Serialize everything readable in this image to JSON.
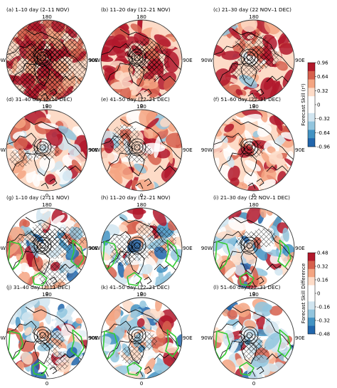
{
  "panels": [
    {
      "id": "a",
      "title": "(a) 1–10 day (2–11 NOV)",
      "kind": "skill",
      "level": 0.85,
      "hatch": 0.95
    },
    {
      "id": "b",
      "title": "(b) 11–20 day (12–21 NOV)",
      "kind": "skill",
      "level": 0.65,
      "hatch": 0.6
    },
    {
      "id": "c",
      "title": "(c) 21–30 day (22 NOV–1 DEC)",
      "kind": "skill",
      "level": 0.5,
      "hatch": 0.35
    },
    {
      "id": "d",
      "title": "(d) 31–40 day (2–11 DEC)",
      "kind": "skill",
      "level": 0.35,
      "hatch": 0.15
    },
    {
      "id": "e",
      "title": "(e) 41–50 day (12–21 DEC)",
      "kind": "skill",
      "level": 0.4,
      "hatch": 0.2
    },
    {
      "id": "f",
      "title": "(f) 51–60 day (22–31 DEC)",
      "kind": "skill",
      "level": 0.35,
      "hatch": 0.05
    },
    {
      "id": "g",
      "title": "(g) 1–10 day (2–11 NOV)",
      "kind": "diff",
      "level": 0.1,
      "hatch": 0.6
    },
    {
      "id": "h",
      "title": "(h) 11–20 day (12–21 NOV)",
      "kind": "diff",
      "level": 0.15,
      "hatch": 0.45
    },
    {
      "id": "i",
      "title": "(i) 21–30 day (22 NOV–1 DEC)",
      "kind": "diff",
      "level": 0.2,
      "hatch": 0.15
    },
    {
      "id": "j",
      "title": "(j) 31–40 day (2–11 DEC)",
      "kind": "diff",
      "level": 0.2,
      "hatch": 0.2
    },
    {
      "id": "k",
      "title": "(k) 41–50 day (12–21 DEC)",
      "kind": "diff",
      "level": 0.2,
      "hatch": 0.1
    },
    {
      "id": "l",
      "title": "(l) 51–60 day (22–31 DEC)",
      "kind": "diff",
      "level": 0.15,
      "hatch": 0.1
    }
  ],
  "longitude_labels": {
    "top": "180",
    "bottom": "0",
    "left": "90W",
    "right": "90E"
  },
  "colorbars": [
    {
      "label": "Forecast Skill (r²)",
      "ticks": [
        "0.96",
        "0.64",
        "0.32",
        "0",
        "-0.32",
        "-0.64",
        "-0.96"
      ]
    },
    {
      "label": "Forecast Skill Difference",
      "ticks": [
        "0.48",
        "0.32",
        "0.16",
        "0",
        "-0.16",
        "-0.32",
        "-0.48"
      ]
    }
  ],
  "colors": {
    "strong_red": "#b2182b",
    "red": "#d6604d",
    "light_red": "#f4a582",
    "pale_red": "#fddbc7",
    "white": "#ffffff",
    "pale_blue": "#d1e5f0",
    "light_blue": "#92c5de",
    "blue": "#4393c3",
    "strong_blue": "#2166ac",
    "significance_contour": "#33cc33",
    "coastline": "#000000"
  }
}
